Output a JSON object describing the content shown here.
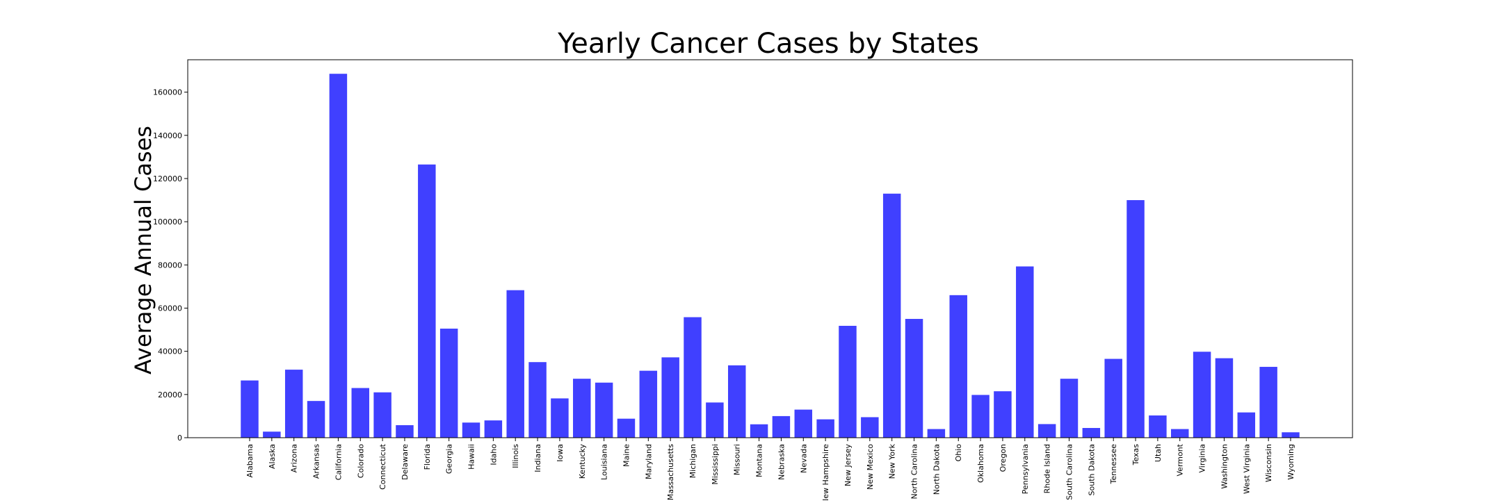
{
  "chart_data": {
    "type": "bar",
    "title": "Yearly Cancer Cases by States",
    "xlabel": "",
    "ylabel": "Average Annual Cases",
    "ylim": [
      0,
      175000
    ],
    "yticks": [
      0,
      20000,
      40000,
      60000,
      80000,
      100000,
      120000,
      140000,
      160000
    ],
    "bar_color": "#4040ff",
    "grid": false,
    "categories": [
      "Alabama",
      "Alaska",
      "Arizona",
      "Arkansas",
      "California",
      "Colorado",
      "Connecticut",
      "Delaware",
      "Florida",
      "Georgia",
      "Hawaii",
      "Idaho",
      "Illinois",
      "Indiana",
      "Iowa",
      "Kentucky",
      "Louisiana",
      "Maine",
      "Maryland",
      "Massachusetts",
      "Michigan",
      "Mississippi",
      "Missouri",
      "Montana",
      "Nebraska",
      "Nevada",
      "New Hampshire",
      "New Jersey",
      "New Mexico",
      "New York",
      "North Carolina",
      "North Dakota",
      "Ohio",
      "Oklahoma",
      "Oregon",
      "Pennsylvania",
      "Rhode Island",
      "South Carolina",
      "South Dakota",
      "Tennessee",
      "Texas",
      "Utah",
      "Vermont",
      "Virginia",
      "Washington",
      "West Virginia",
      "Wisconsin",
      "Wyoming"
    ],
    "values": [
      26500,
      2800,
      31500,
      17000,
      168500,
      23000,
      21000,
      5800,
      126500,
      50500,
      7000,
      8000,
      68300,
      35000,
      18200,
      27300,
      25500,
      8800,
      31000,
      37200,
      55800,
      16300,
      33500,
      6200,
      10000,
      13000,
      8500,
      51800,
      9500,
      113000,
      55000,
      4000,
      66000,
      19800,
      21500,
      79300,
      6300,
      27300,
      4500,
      36500,
      110000,
      10300,
      4000,
      39800,
      36800,
      11700,
      32800,
      2500
    ]
  }
}
